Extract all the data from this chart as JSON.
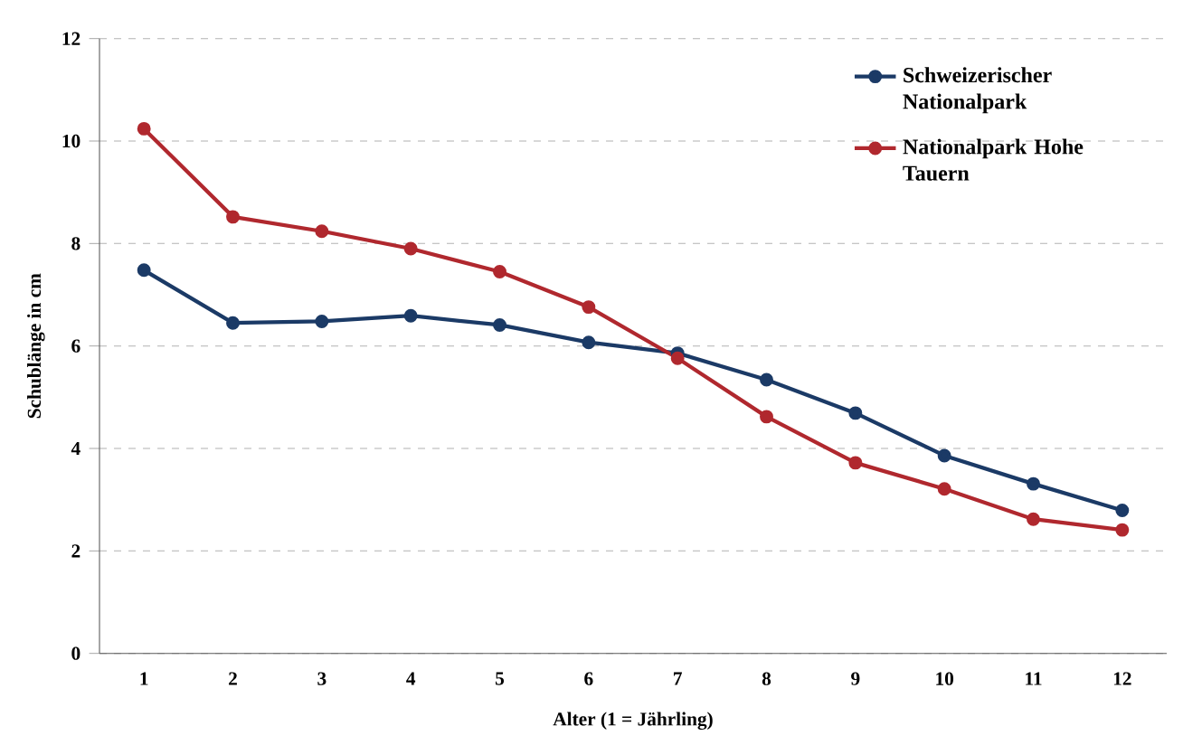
{
  "chart_data": {
    "type": "line",
    "xlabel": "Alter (1 = Jährling)",
    "ylabel": "Schublänge in cm",
    "categories": [
      "1",
      "2",
      "3",
      "4",
      "5",
      "6",
      "7",
      "8",
      "9",
      "10",
      "11",
      "12"
    ],
    "series": [
      {
        "name": "Schweizerischer Nationalpark",
        "color": "#1b3a66",
        "values": [
          7.48,
          6.45,
          6.48,
          6.59,
          6.41,
          6.07,
          5.86,
          5.34,
          4.69,
          3.86,
          3.31,
          2.79
        ]
      },
      {
        "name": "Nationalpark Hohe Tauern",
        "color": "#b0282e",
        "values": [
          10.24,
          8.52,
          8.24,
          7.9,
          7.45,
          6.76,
          5.76,
          4.62,
          3.72,
          3.21,
          2.62,
          2.41
        ]
      }
    ],
    "ylim": [
      0,
      12
    ],
    "yticks": [
      0,
      2,
      4,
      6,
      8,
      10,
      12
    ],
    "grid": "y",
    "legend": "top right",
    "marker": "circle",
    "line_style": "solid"
  }
}
